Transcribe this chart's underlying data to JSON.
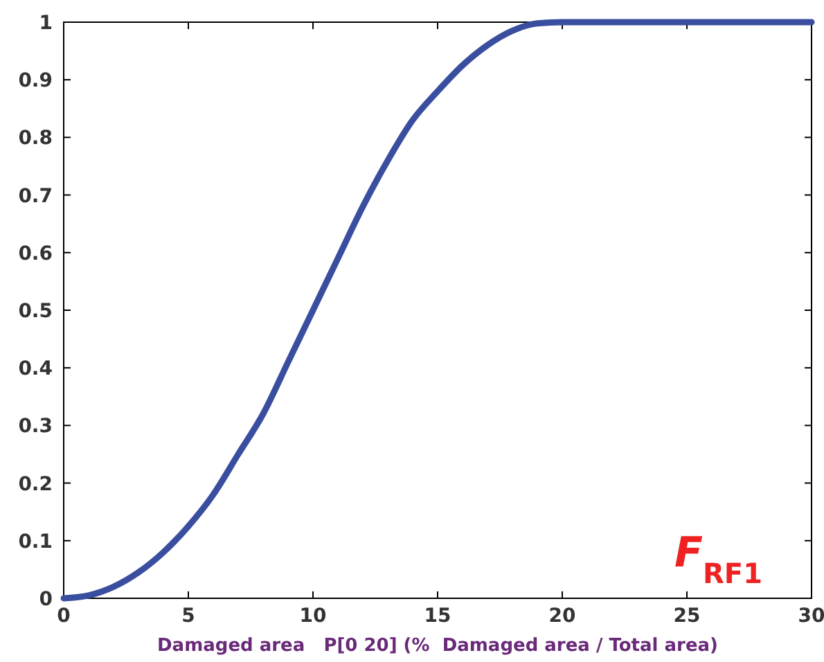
{
  "chart_data": {
    "type": "line",
    "xlabel": "Damaged area   P[0 20] (%  Damaged area / Total area)",
    "annotations": [
      "F$_{RF1}$"
    ],
    "x": [
      0,
      1,
      2,
      3,
      4,
      5,
      6,
      7,
      8,
      9,
      10,
      11,
      12,
      13,
      14,
      15,
      16,
      17,
      18,
      19,
      20,
      25,
      30
    ],
    "series": [
      {
        "color": "#3a4ea0",
        "values": [
          0,
          0.005,
          0.02,
          0.045,
          0.08,
          0.125,
          0.18,
          0.25,
          0.32,
          0.41,
          0.5,
          0.59,
          0.68,
          0.76,
          0.83,
          0.88,
          0.925,
          0.96,
          0.985,
          0.998,
          1,
          1,
          1
        ]
      }
    ],
    "xlim": [
      0,
      30
    ],
    "ylim": [
      0,
      1
    ],
    "xticks": [
      0,
      5,
      10,
      15,
      20,
      25,
      30
    ],
    "yticks": [
      0,
      0.1,
      0.2,
      0.3,
      0.4,
      0.5,
      0.6,
      0.7,
      0.8,
      0.9,
      1
    ],
    "grid": false,
    "marker": "none",
    "line_style": "solid"
  }
}
